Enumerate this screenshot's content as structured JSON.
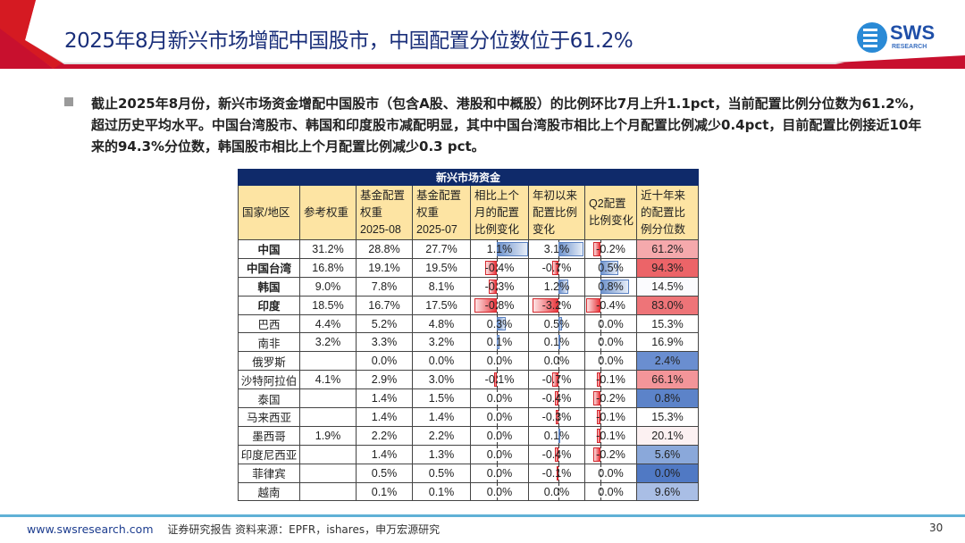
{
  "header": {
    "title": "2025年8月新兴市场增配中国股市，中国配置分位数位于61.2%",
    "logo_text": "SWS",
    "logo_sub": "RESEARCH",
    "accent": "#c8102e"
  },
  "summary": "截止2025年8月份，新兴市场资金增配中国股市（包含A股、港股和中概股）的比例环比7月上升1.1pct，当前配置比例分位数为61.2%，超过历史平均水平。中国台湾股市、韩国和印度股市减配明显，其中中国台湾股市相比上个月配置比例减少0.4pct，目前配置比例接近10年来的94.3%分位数，韩国股市相比上个月配置比例减少0.3 pct。",
  "table": {
    "caption": "新兴市场资金",
    "columns": [
      "国家/地区",
      "参考权重",
      "基金配置\n权重\n2025-08",
      "基金配置\n权重\n2025-07",
      "相比上个\n月的配置\n比例变化",
      "年初以来\n配置比例\n变化",
      "Q2配置\n比例变化",
      "近十年来\n的配置比\n例分位数"
    ],
    "rows": [
      {
        "name": "中国",
        "bold": true,
        "ref": "31.2%",
        "w08": "28.8%",
        "w07": "27.7%",
        "mom": "1.1%",
        "ytd": "3.1%",
        "q2": "-0.2%",
        "pct": "61.2%",
        "heat": "#f5a9ac"
      },
      {
        "name": "中国台湾",
        "bold": true,
        "ref": "16.8%",
        "w08": "19.1%",
        "w07": "19.5%",
        "mom": "-0.4%",
        "ytd": "-0.7%",
        "q2": "0.5%",
        "pct": "94.3%",
        "heat": "#ec6468"
      },
      {
        "name": "韩国",
        "bold": true,
        "ref": "9.0%",
        "w08": "7.8%",
        "w07": "8.1%",
        "mom": "-0.3%",
        "ytd": "1.2%",
        "q2": "0.8%",
        "pct": "14.5%",
        "heat": "#fbfbfe"
      },
      {
        "name": "印度",
        "bold": true,
        "ref": "18.5%",
        "w08": "16.7%",
        "w07": "17.5%",
        "mom": "-0.8%",
        "ytd": "-3.2%",
        "q2": "-0.4%",
        "pct": "83.0%",
        "heat": "#ee7478"
      },
      {
        "name": "巴西",
        "bold": false,
        "ref": "4.4%",
        "w08": "5.2%",
        "w07": "4.8%",
        "mom": "0.3%",
        "ytd": "0.5%",
        "q2": "0.0%",
        "pct": "15.3%",
        "heat": "#ffffff"
      },
      {
        "name": "南非",
        "bold": false,
        "ref": "3.2%",
        "w08": "3.3%",
        "w07": "3.2%",
        "mom": "0.1%",
        "ytd": "0.1%",
        "q2": "0.0%",
        "pct": "16.9%",
        "heat": "#ffffff"
      },
      {
        "name": "俄罗斯",
        "bold": false,
        "ref": "",
        "w08": "0.0%",
        "w07": "0.0%",
        "mom": "0.0%",
        "ytd": "0.0%",
        "q2": "0.0%",
        "pct": "2.4%",
        "heat": "#6a8ed0"
      },
      {
        "name": "沙特阿拉伯",
        "bold": false,
        "ref": "4.1%",
        "w08": "2.9%",
        "w07": "3.0%",
        "mom": "-0.1%",
        "ytd": "-0.7%",
        "q2": "-0.1%",
        "pct": "66.1%",
        "heat": "#f39599"
      },
      {
        "name": "泰国",
        "bold": false,
        "ref": "",
        "w08": "1.4%",
        "w07": "1.5%",
        "mom": "0.0%",
        "ytd": "-0.4%",
        "q2": "-0.2%",
        "pct": "0.8%",
        "heat": "#5c83c9"
      },
      {
        "name": "马来西亚",
        "bold": false,
        "ref": "",
        "w08": "1.4%",
        "w07": "1.4%",
        "mom": "0.0%",
        "ytd": "-0.3%",
        "q2": "-0.1%",
        "pct": "15.3%",
        "heat": "#ffffff"
      },
      {
        "name": "墨西哥",
        "bold": false,
        "ref": "1.9%",
        "w08": "2.2%",
        "w07": "2.2%",
        "mom": "0.0%",
        "ytd": "0.1%",
        "q2": "-0.1%",
        "pct": "20.1%",
        "heat": "#fcf1f2"
      },
      {
        "name": "印度尼西亚",
        "bold": false,
        "ref": "",
        "w08": "1.4%",
        "w07": "1.3%",
        "mom": "0.0%",
        "ytd": "-0.4%",
        "q2": "-0.2%",
        "pct": "5.6%",
        "heat": "#8aa8da"
      },
      {
        "name": "菲律宾",
        "bold": false,
        "ref": "",
        "w08": "0.5%",
        "w07": "0.5%",
        "mom": "0.0%",
        "ytd": "-0.1%",
        "q2": "0.0%",
        "pct": "0.0%",
        "heat": "#5079c4"
      },
      {
        "name": "越南",
        "bold": false,
        "ref": "",
        "w08": "0.1%",
        "w07": "0.1%",
        "mom": "0.0%",
        "ytd": "0.0%",
        "q2": "0.0%",
        "pct": "9.6%",
        "heat": "#a9bee5"
      }
    ]
  },
  "colors": {
    "positive_bar": "#6f93cc",
    "negative_bar": "#e8393f",
    "caption_bg": "#0f2a6a",
    "header_bg": "#fde4a3"
  },
  "footer": {
    "url": "www.swsresearch.com",
    "label": "证券研究报告",
    "source": "资料来源：EPFR，ishares，申万宏源研究",
    "page": "30"
  }
}
